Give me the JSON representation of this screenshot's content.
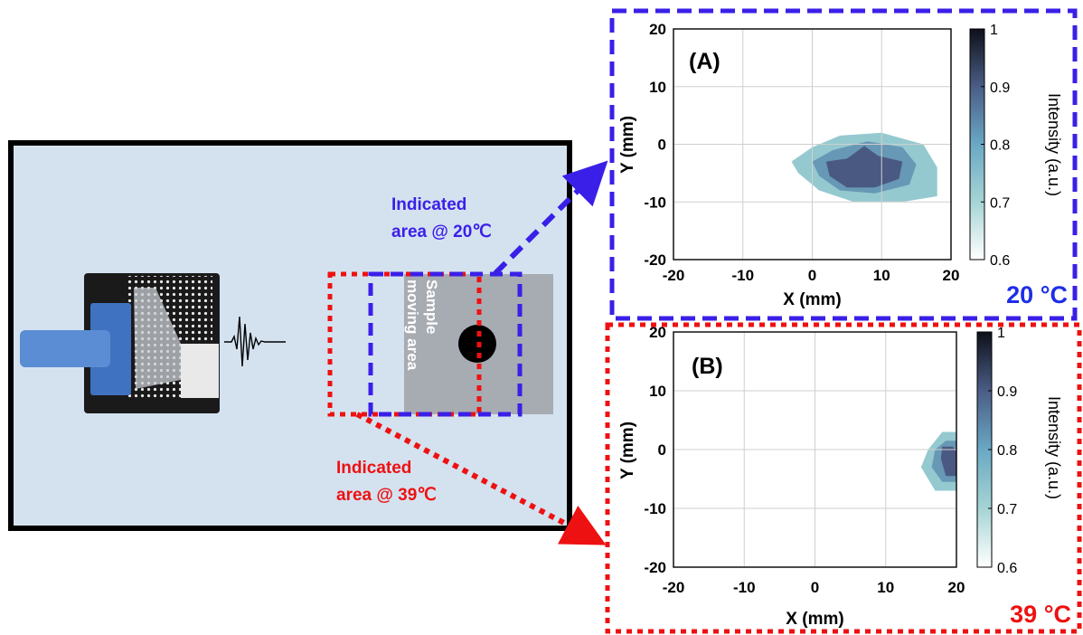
{
  "setup": {
    "label_20": [
      "Indicated",
      "area @ 20℃"
    ],
    "label_39": [
      "Indicated",
      "area @ 39℃"
    ],
    "sample_label": [
      "Sample",
      "moving area"
    ],
    "colors": {
      "background": "#d4e2f0",
      "frame": "#000000",
      "blue_box": "#3a1fe8",
      "red_box": "#ee1111",
      "sample_area": "#a7abb2",
      "transducer": "#3f72c0"
    }
  },
  "panels": [
    {
      "label": "(A)",
      "temperature": "20 °C",
      "temperature_color": "#1c2ee8",
      "border_color": "#3a1fe8",
      "chart_data": {
        "type": "heatmap",
        "xlabel": "X (mm)",
        "ylabel": "Y (mm)",
        "xlim": [
          -20,
          20
        ],
        "ylim": [
          -20,
          20
        ],
        "xticks": [
          -20,
          -10,
          0,
          10,
          20
        ],
        "yticks": [
          -20,
          -10,
          0,
          10,
          20
        ],
        "grid": true,
        "colorbar": {
          "label": "Intensity (a.u.)",
          "range": [
            0.6,
            1
          ],
          "ticks": [
            0.6,
            0.7,
            0.8,
            0.9,
            1
          ]
        },
        "contours": [
          {
            "level": 0.7,
            "points": [
              [
                -3,
                -3
              ],
              [
                0,
                -0.5
              ],
              [
                4,
                1.5
              ],
              [
                10,
                2
              ],
              [
                16,
                0
              ],
              [
                18,
                -4
              ],
              [
                18,
                -9
              ],
              [
                13,
                -10
              ],
              [
                6,
                -10
              ],
              [
                1,
                -8
              ],
              [
                -2,
                -5
              ]
            ]
          },
          {
            "level": 0.8,
            "points": [
              [
                0,
                -3
              ],
              [
                3,
                -1
              ],
              [
                8,
                0.5
              ],
              [
                13,
                -0.5
              ],
              [
                15,
                -3.5
              ],
              [
                14,
                -7
              ],
              [
                9,
                -8.5
              ],
              [
                4,
                -8
              ],
              [
                1,
                -5.5
              ]
            ]
          },
          {
            "level": 0.9,
            "points": [
              [
                2,
                -3
              ],
              [
                5,
                -2.5
              ],
              [
                7.5,
                -0.3
              ],
              [
                9.5,
                -2
              ],
              [
                13,
                -3
              ],
              [
                12.5,
                -6
              ],
              [
                9,
                -7.5
              ],
              [
                5,
                -7.5
              ],
              [
                2.5,
                -5.5
              ]
            ]
          }
        ]
      }
    },
    {
      "label": "(B)",
      "temperature": "39 °C",
      "temperature_color": "#ee1111",
      "border_color": "#ee1111",
      "chart_data": {
        "type": "heatmap",
        "xlabel": "X (mm)",
        "ylabel": "Y (mm)",
        "xlim": [
          -20,
          20
        ],
        "ylim": [
          -20,
          20
        ],
        "xticks": [
          -20,
          -10,
          0,
          10,
          20
        ],
        "yticks": [
          -20,
          -10,
          0,
          10,
          20
        ],
        "grid": true,
        "colorbar": {
          "label": "Intensity (a.u.)",
          "range": [
            0.6,
            1
          ],
          "ticks": [
            0.6,
            0.7,
            0.8,
            0.9,
            1
          ]
        },
        "contours": [
          {
            "level": 0.7,
            "points": [
              [
                16,
                0
              ],
              [
                18,
                3
              ],
              [
                20,
                3
              ],
              [
                20,
                -7
              ],
              [
                17,
                -7
              ],
              [
                15,
                -3
              ]
            ]
          },
          {
            "level": 0.8,
            "points": [
              [
                17,
                0
              ],
              [
                18.5,
                1.5
              ],
              [
                20,
                1.5
              ],
              [
                20,
                -5.5
              ],
              [
                18,
                -5.5
              ],
              [
                16.5,
                -3
              ]
            ]
          },
          {
            "level": 0.9,
            "points": [
              [
                18,
                0.5
              ],
              [
                19.5,
                0.5
              ],
              [
                20,
                -0.5
              ],
              [
                20,
                -4.5
              ],
              [
                18.5,
                -4.5
              ],
              [
                17.8,
                -1.5
              ]
            ]
          }
        ]
      }
    }
  ]
}
